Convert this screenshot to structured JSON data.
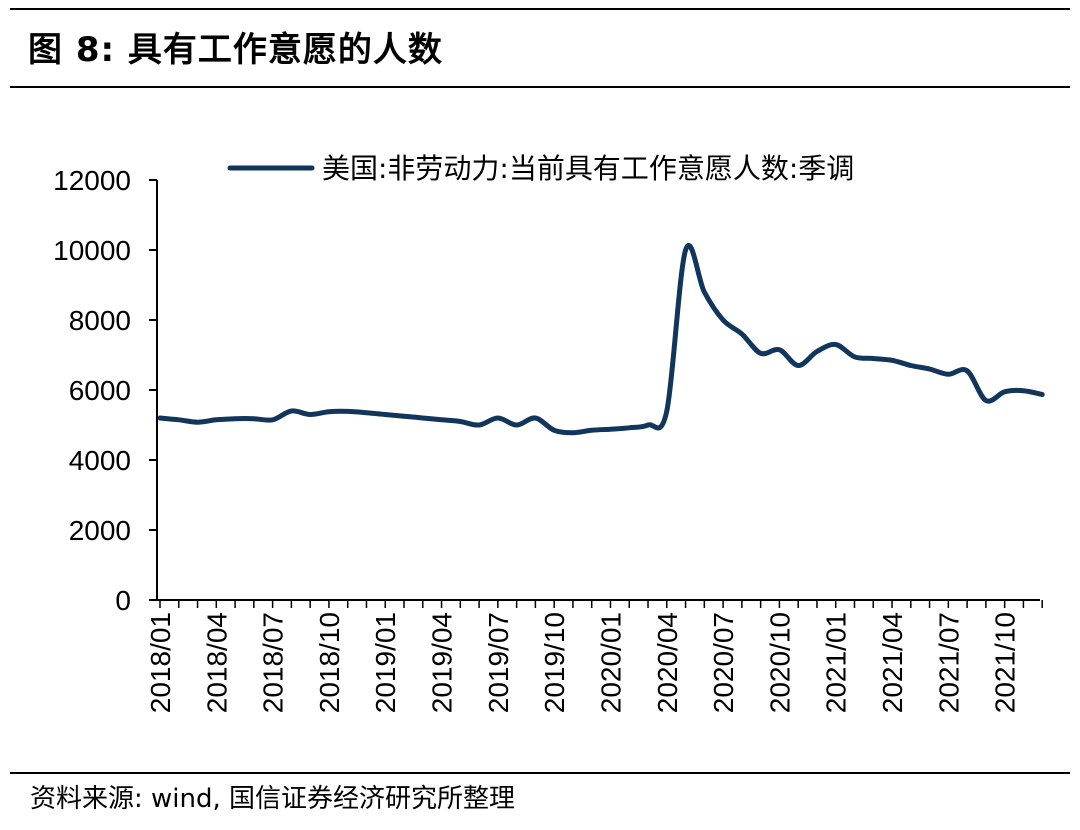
{
  "figure": {
    "title": "图 8:  具有工作意愿的人数",
    "source": "资料来源: wind, 国信证券经济研究所整理"
  },
  "chart_data": {
    "type": "line",
    "colors": {
      "series": "#12355b"
    },
    "legend_position": "top",
    "grid": false,
    "ylim": [
      0,
      12000
    ],
    "y_ticks": [
      "0",
      "2000",
      "4000",
      "6000",
      "8000",
      "10000",
      "12000"
    ],
    "x_tick_labels": [
      "2018/01",
      "2018/04",
      "2018/07",
      "2018/10",
      "2019/01",
      "2019/04",
      "2019/07",
      "2019/10",
      "2020/01",
      "2020/04",
      "2020/07",
      "2020/10",
      "2021/01",
      "2021/04",
      "2021/07",
      "2021/10"
    ],
    "x": [
      "2018/01",
      "2018/02",
      "2018/03",
      "2018/04",
      "2018/05",
      "2018/06",
      "2018/07",
      "2018/08",
      "2018/09",
      "2018/10",
      "2018/11",
      "2018/12",
      "2019/01",
      "2019/02",
      "2019/03",
      "2019/04",
      "2019/05",
      "2019/06",
      "2019/07",
      "2019/08",
      "2019/09",
      "2019/10",
      "2019/11",
      "2019/12",
      "2020/01",
      "2020/02",
      "2020/03",
      "2020/04",
      "2020/05",
      "2020/06",
      "2020/07",
      "2020/08",
      "2020/09",
      "2020/10",
      "2020/11",
      "2020/12",
      "2021/01",
      "2021/02",
      "2021/03",
      "2021/04",
      "2021/05",
      "2021/06",
      "2021/07",
      "2021/08",
      "2021/09",
      "2021/10",
      "2021/11",
      "2021/12"
    ],
    "series": [
      {
        "name": "美国:非劳动力:当前具有工作意愿人数:季调",
        "values": [
          5200,
          5150,
          5080,
          5150,
          5180,
          5180,
          5150,
          5400,
          5300,
          5380,
          5390,
          5350,
          5300,
          5250,
          5200,
          5150,
          5100,
          5000,
          5200,
          5000,
          5200,
          4850,
          4780,
          4850,
          4880,
          4920,
          5000,
          5400,
          10000,
          8800,
          8000,
          7600,
          7050,
          7150,
          6700,
          7100,
          7300,
          6950,
          6900,
          6850,
          6700,
          6600,
          6450,
          6550,
          5700,
          5950,
          5980,
          5870
        ]
      }
    ]
  }
}
